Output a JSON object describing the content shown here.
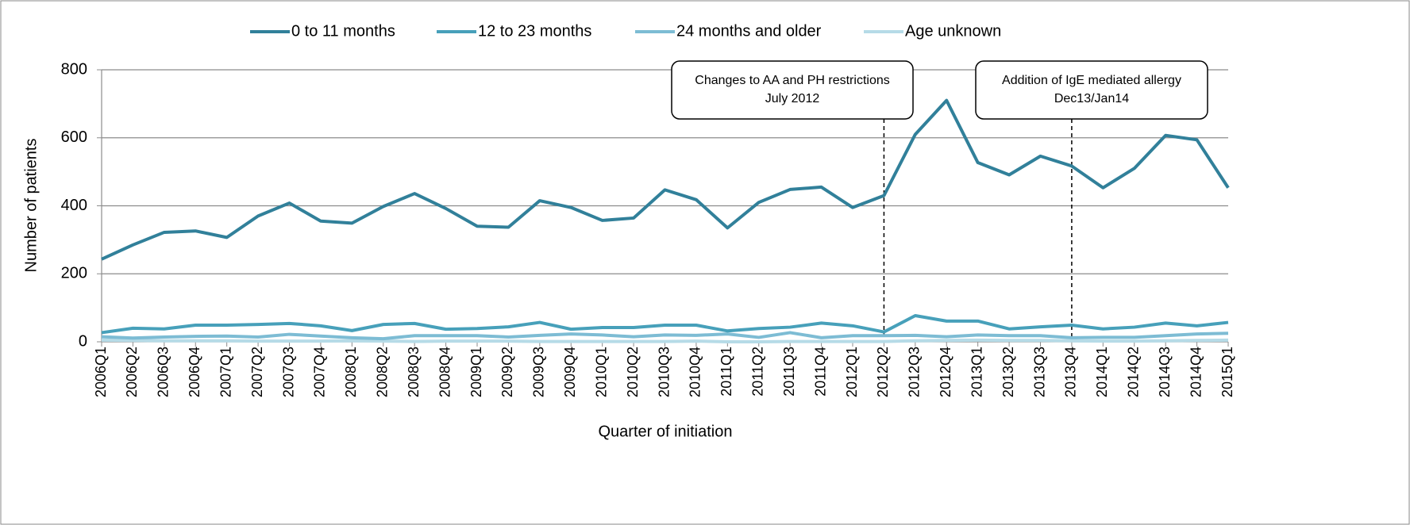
{
  "chart_data": {
    "type": "line",
    "x_label": "Quarter of initiation",
    "y_label": "Number of patients",
    "categories": [
      "2006Q1",
      "2006Q2",
      "2006Q3",
      "2006Q4",
      "2007Q1",
      "2007Q2",
      "2007Q3",
      "2007Q4",
      "2008Q1",
      "2008Q2",
      "2008Q3",
      "2008Q4",
      "2009Q1",
      "2009Q2",
      "2009Q3",
      "2009Q4",
      "2010Q1",
      "2010Q2",
      "2010Q3",
      "2010Q4",
      "2011Q1",
      "2011Q2",
      "2011Q3",
      "2011Q4",
      "2012Q1",
      "2012Q2",
      "2012Q3",
      "2012Q4",
      "2013Q1",
      "2013Q2",
      "2013Q3",
      "2013Q4",
      "2014Q1",
      "2014Q2",
      "2014Q3",
      "2014Q4",
      "2015Q1"
    ],
    "series": [
      {
        "name": "0 to 11 months",
        "color": "#31809a",
        "values": [
          243,
          285,
          322,
          326,
          307,
          370,
          408,
          355,
          349,
          398,
          436,
          392,
          340,
          337,
          415,
          395,
          357,
          364,
          447,
          418,
          335,
          410,
          448,
          455,
          395,
          430,
          610,
          710,
          527,
          491,
          546,
          517,
          453,
          510,
          607,
          594,
          453
        ]
      },
      {
        "name": "12 to 23 months",
        "color": "#47a0ba",
        "values": [
          27,
          40,
          38,
          49,
          49,
          51,
          54,
          47,
          33,
          51,
          54,
          37,
          39,
          44,
          57,
          37,
          42,
          42,
          49,
          49,
          32,
          39,
          43,
          55,
          47,
          29,
          77,
          61,
          61,
          38,
          44,
          49,
          38,
          43,
          55,
          47,
          57
        ]
      },
      {
        "name": "24 months and older",
        "color": "#7dbcd4",
        "values": [
          15,
          11,
          14,
          16,
          17,
          14,
          22,
          17,
          12,
          9,
          18,
          18,
          18,
          14,
          19,
          23,
          20,
          15,
          20,
          19,
          23,
          13,
          27,
          12,
          18,
          18,
          19,
          15,
          20,
          18,
          18,
          12,
          13,
          13,
          18,
          23,
          25
        ]
      },
      {
        "name": "Age unknown",
        "color": "#b6dbe7",
        "values": [
          5,
          4,
          3,
          3,
          3,
          2,
          2,
          2,
          3,
          2,
          1,
          2,
          2,
          2,
          1,
          1,
          1,
          1,
          1,
          2,
          0,
          0,
          1,
          1,
          1,
          1,
          3,
          4,
          5,
          4,
          4,
          3,
          2,
          2,
          3,
          4,
          5
        ]
      }
    ],
    "ylim": [
      0,
      800
    ],
    "yticks": [
      0,
      200,
      400,
      600,
      800
    ],
    "grid": true,
    "legend": "top",
    "annotations": [
      {
        "x": "2012Q2",
        "lines": [
          "Changes to AA and PH restrictions",
          "July 2012"
        ]
      },
      {
        "x": "2013Q4",
        "lines": [
          "Addition of IgE mediated allergy",
          "Dec13/Jan14"
        ]
      }
    ]
  }
}
